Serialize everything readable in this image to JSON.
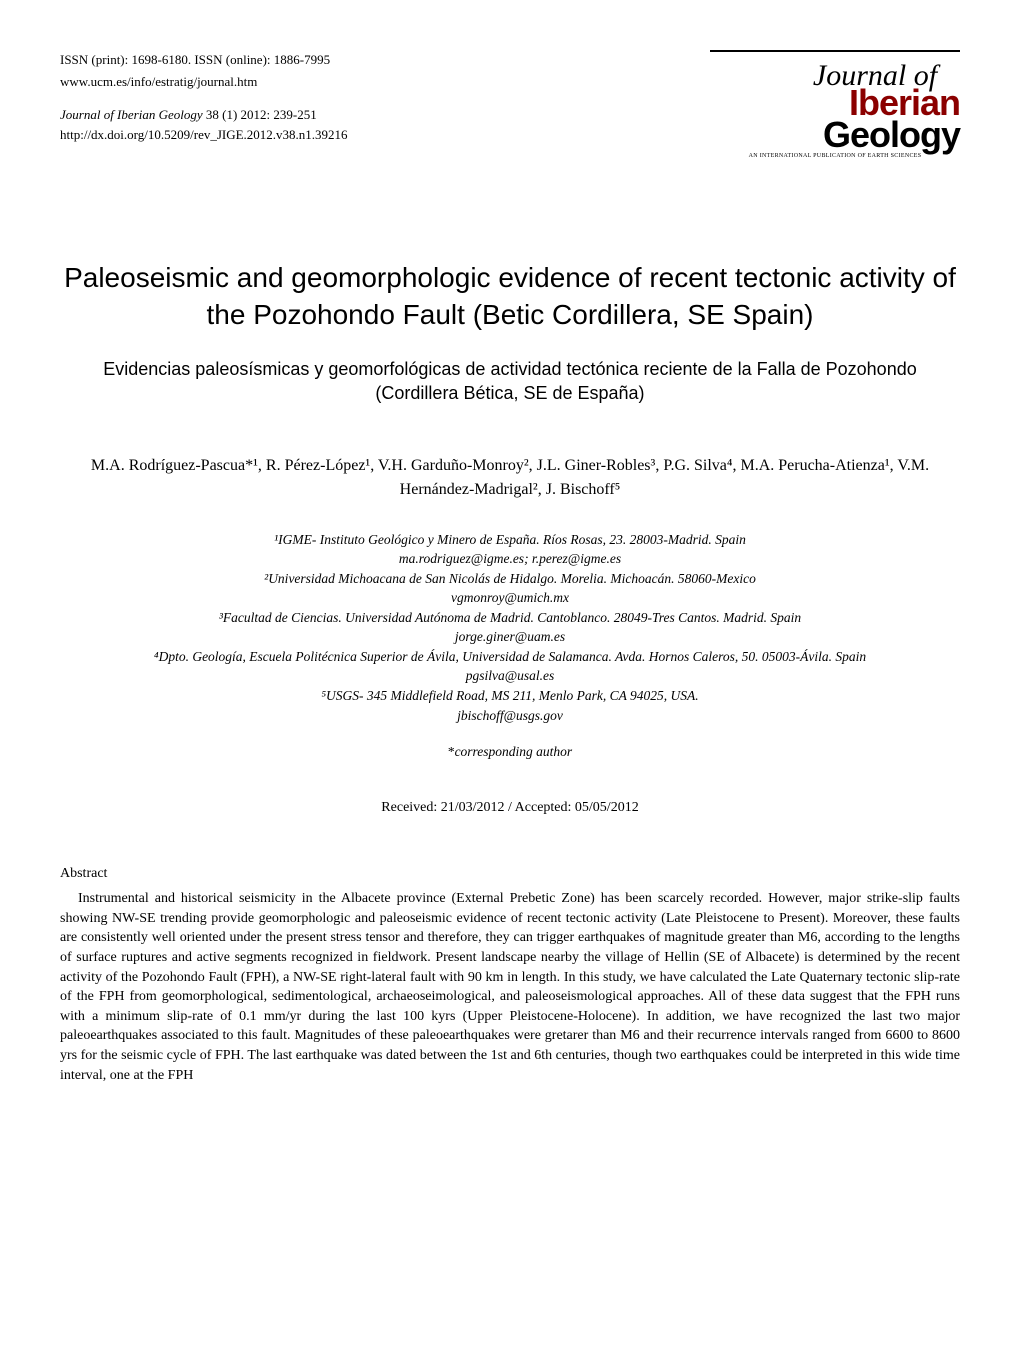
{
  "header": {
    "issn": "ISSN (print): 1698-6180. ISSN (online): 1886-7995",
    "url": "www.ucm.es/info/estratig/journal.htm",
    "journal_name": "Journal of Iberian Geology",
    "volume_info": " 38 (1) 2012: 239-251",
    "doi": "http://dx.doi.org/10.5209/rev_JIGE.2012.v38.n1.39216"
  },
  "logo": {
    "script": "Journal of",
    "word1": "Iberian",
    "word2": " Geology",
    "subtitle": "An International Publication of Earth Sciences",
    "accent_color": "#8b0000"
  },
  "title": {
    "main": "Paleoseismic and geomorphologic evidence of recent tectonic activity of the Pozohondo Fault (Betic Cordillera, SE Spain)",
    "sub": "Evidencias paleosísmicas y geomorfológicas de actividad tectónica reciente de la Falla de Pozohondo (Cordillera Bética, SE de España)"
  },
  "authors_line": "M.A. Rodríguez-Pascua*¹, R. Pérez-López¹, V.H. Garduño-Monroy², J.L. Giner-Robles³, P.G. Silva⁴, M.A. Perucha-Atienza¹, V.M. Hernández-Madrigal², J. Bischoff⁵",
  "affiliations": {
    "a1": "¹IGME- Instituto Geológico y Minero de España. Ríos Rosas, 23. 28003-Madrid. Spain",
    "e1": "ma.rodriguez@igme.es; r.perez@igme.es",
    "a2": "²Universidad Michoacana de San Nicolás de Hidalgo. Morelia. Michoacán. 58060-Mexico",
    "e2": "vgmonroy@umich.mx",
    "a3": "³Facultad de Ciencias. Universidad Autónoma de Madrid. Cantoblanco. 28049-Tres Cantos. Madrid. Spain",
    "e3": "jorge.giner@uam.es",
    "a4": "⁴Dpto. Geología, Escuela Politécnica Superior de Ávila, Universidad de Salamanca. Avda. Hornos Caleros, 50. 05003-Ávila. Spain",
    "e4": "pgsilva@usal.es",
    "a5": "⁵USGS- 345 Middlefield Road, MS 211, Menlo Park, CA 94025, USA.",
    "e5": "jbischoff@usgs.gov"
  },
  "corresponding": {
    "marker": "*",
    "text": "corresponding author"
  },
  "dates": "Received: 21/03/2012 / Accepted: 05/05/2012",
  "abstract": {
    "heading": "Abstract",
    "body": "Instrumental and historical seismicity in the Albacete province (External Prebetic Zone) has been scarcely recorded. However, major strike-slip faults showing NW-SE trending provide geomorphologic and paleoseismic evidence of recent tectonic activity (Late Pleistocene to Present). Moreover, these faults are consistently well oriented under the present stress tensor and therefore, they can trigger earthquakes of magnitude greater than M6, according to the lengths of surface ruptures and active segments recognized in fieldwork. Present landscape nearby the village of Hellin (SE of Albacete) is determined by the recent activity of the Pozohondo Fault (FPH), a NW-SE right-lateral fault with 90 km in length. In this study, we have calculated the Late Quaternary tectonic slip-rate of the FPH from geomorphological, sedimentological, archaeoseimological, and paleoseismological approaches. All of these data suggest that the FPH runs with a minimum slip-rate of 0.1 mm/yr during the last 100 kyrs (Upper Pleistocene-Holocene). In addition, we have recognized the last two major paleoearthquakes associated to this fault. Magnitudes of these paleoearthquakes were gretarer than M6 and their recurrence intervals ranged from 6600 to 8600 yrs for the seismic cycle of FPH. The last earthquake was dated between the 1st and 6th centuries, though two earthquakes could be interpreted in this wide time interval, one at the FPH"
  }
}
